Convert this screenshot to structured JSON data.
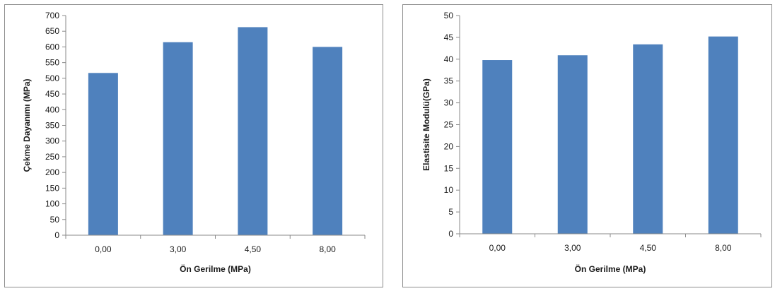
{
  "colors": {
    "bar": "#4F81BD",
    "axis": "#8a8a8a",
    "frame": "#8c8c8c"
  },
  "chart_data": [
    {
      "type": "bar",
      "categories": [
        "0,00",
        "3,00",
        "4,50",
        "8,00"
      ],
      "values": [
        517,
        615,
        663,
        600
      ],
      "xlabel": "Ön Gerilme (MPa)",
      "ylabel": "Çekme Dayanımı (MPa)",
      "ylim": [
        0,
        700
      ],
      "yticks": [
        0,
        50,
        100,
        150,
        200,
        250,
        300,
        350,
        400,
        450,
        500,
        550,
        600,
        650,
        700
      ],
      "grid": false,
      "legend": "none"
    },
    {
      "type": "bar",
      "categories": [
        "0,00",
        "3,00",
        "4,50",
        "8,00"
      ],
      "values": [
        39.8,
        40.9,
        43.4,
        45.2
      ],
      "xlabel": "Ön Gerilme (MPa)",
      "ylabel": "Elastisite Modulü(GPa)",
      "ylim": [
        0,
        50
      ],
      "yticks": [
        0,
        5,
        10,
        15,
        20,
        25,
        30,
        35,
        40,
        45,
        50
      ],
      "grid": false,
      "legend": "none"
    }
  ]
}
